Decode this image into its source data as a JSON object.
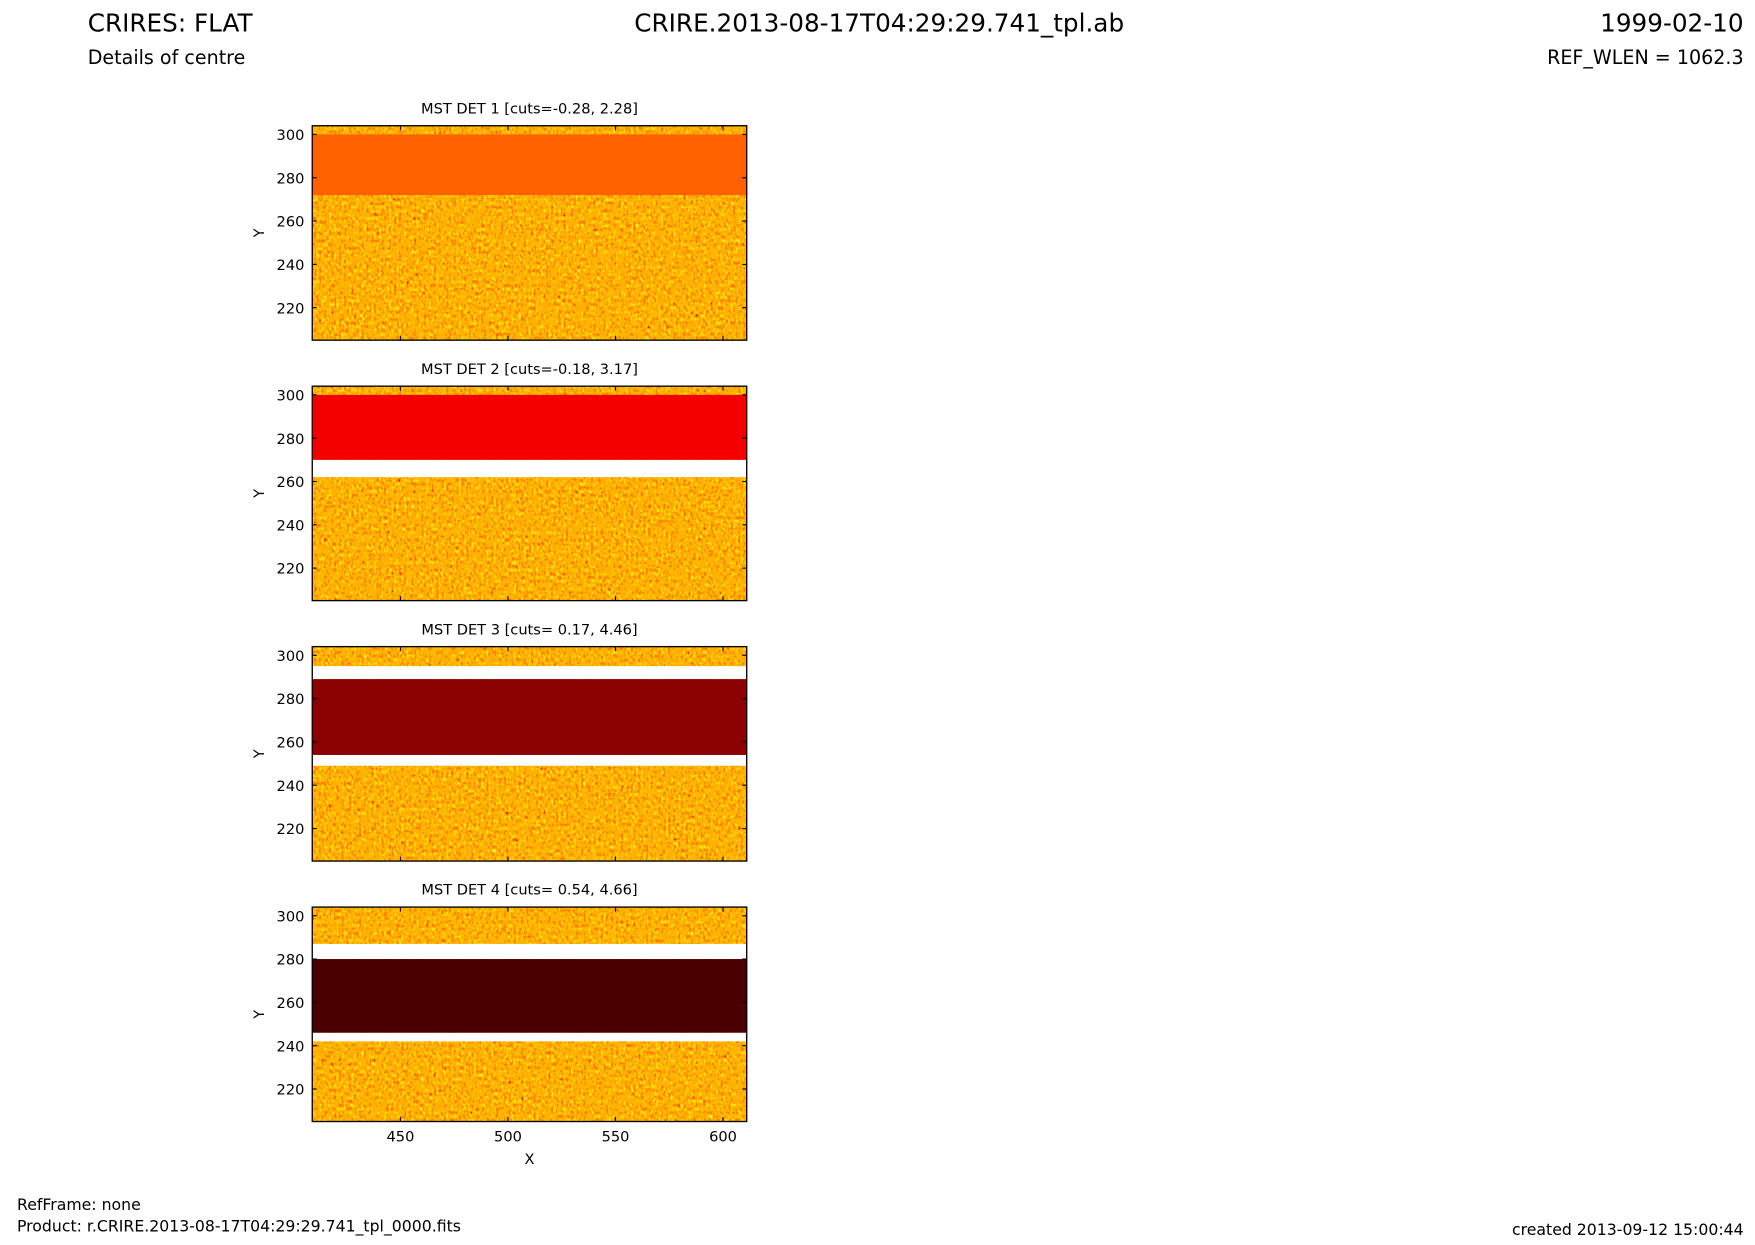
{
  "header": {
    "title": "CRIRES: FLAT",
    "subtitle": "Details of centre",
    "file": "CRIRE.2013-08-17T04:29:29.741_tpl.ab",
    "date": "1999-02-10",
    "ref_wlen": "REF_WLEN = 1062.3"
  },
  "footer": {
    "refframe": "RefFrame: none",
    "product": "Product: r.CRIRE.2013-08-17T04:29:29.741_tpl_0000.fits",
    "created": "created 2013-09-12 15:00:44"
  },
  "chart_data": [
    {
      "type": "image",
      "title": "MST DET 1 [cuts=-0.28, 2.28]",
      "ylabel": "Y",
      "xlim": [
        409,
        611
      ],
      "ylim": [
        205,
        304
      ],
      "xticks": [
        450,
        500,
        550,
        600
      ],
      "yticks": [
        220,
        240,
        260,
        280,
        300
      ],
      "xtick_labels": false,
      "bands": [
        {
          "y": [
            272,
            300
          ],
          "color": "#ff6000"
        }
      ]
    },
    {
      "type": "image",
      "title": "MST DET 2 [cuts=-0.18, 3.17]",
      "ylabel": "Y",
      "xlim": [
        409,
        611
      ],
      "ylim": [
        205,
        304
      ],
      "xticks": [
        450,
        500,
        550,
        600
      ],
      "yticks": [
        220,
        240,
        260,
        280,
        300
      ],
      "xtick_labels": false,
      "bands": [
        {
          "y": [
            262,
            270
          ],
          "color": "#ffffff"
        },
        {
          "y": [
            270,
            300
          ],
          "color": "#f50000"
        }
      ]
    },
    {
      "type": "image",
      "title": "MST DET 3 [cuts= 0.17, 4.46]",
      "ylabel": "Y",
      "xlim": [
        409,
        611
      ],
      "ylim": [
        205,
        304
      ],
      "xticks": [
        450,
        500,
        550,
        600
      ],
      "yticks": [
        220,
        240,
        260,
        280,
        300
      ],
      "xtick_labels": false,
      "bands": [
        {
          "y": [
            249,
            254
          ],
          "color": "#ffffff"
        },
        {
          "y": [
            289,
            295
          ],
          "color": "#ffffff"
        },
        {
          "y": [
            254,
            289
          ],
          "color": "#8b0000"
        }
      ]
    },
    {
      "type": "image",
      "title": "MST DET 4 [cuts= 0.54, 4.66]",
      "xlabel": "X",
      "ylabel": "Y",
      "xlim": [
        409,
        611
      ],
      "ylim": [
        205,
        304
      ],
      "xticks": [
        450,
        500,
        550,
        600
      ],
      "yticks": [
        220,
        240,
        260,
        280,
        300
      ],
      "xtick_labels": true,
      "bands": [
        {
          "y": [
            242,
            246
          ],
          "color": "#ffffff"
        },
        {
          "y": [
            280,
            287
          ],
          "color": "#ffffff"
        },
        {
          "y": [
            246,
            280
          ],
          "color": "#4a0000"
        }
      ]
    }
  ]
}
